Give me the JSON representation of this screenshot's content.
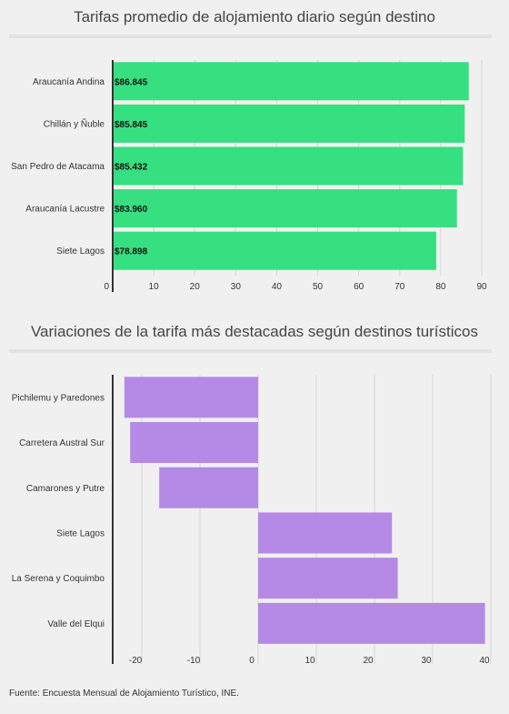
{
  "chart_data": [
    {
      "type": "bar",
      "orientation": "horizontal",
      "title": "Tarifas promedio de alojamiento diario según destino",
      "categories": [
        "Araucanía Andina",
        "Chillán y Ñuble",
        "San Pedro de Atacama",
        "Araucanía Lacustre",
        "Siete Lagos"
      ],
      "values": [
        86.845,
        85.845,
        85.432,
        83.96,
        78.898
      ],
      "data_labels": [
        "$86.845",
        "$85.845",
        "$85.432",
        "$83.960",
        "$78.898"
      ],
      "xlim": [
        0,
        90
      ],
      "ticks": [
        0,
        10,
        20,
        30,
        40,
        50,
        60,
        70,
        80,
        90
      ],
      "tick_labels": [
        "0",
        "10",
        "20",
        "30",
        "40",
        "50",
        "60",
        "70",
        "80",
        "90"
      ],
      "grid": true,
      "color": "#36df80"
    },
    {
      "type": "bar",
      "orientation": "horizontal",
      "title": "Variaciones de la tarifa más destacadas según destinos turísticos",
      "categories": [
        "Pichilemu y Paredones",
        "Carretera Austral Sur",
        "Camarones y Putre",
        "Siete Lagos",
        "La Serena y Coquimbo",
        "Valle del Elqui"
      ],
      "values": [
        -23,
        -22,
        -17,
        23,
        24,
        39
      ],
      "xlim": [
        -25,
        40
      ],
      "ticks": [
        -20,
        -10,
        0,
        10,
        20,
        30,
        40
      ],
      "tick_labels": [
        "-20",
        "-10",
        "0",
        "10",
        "20",
        "30",
        "40"
      ],
      "grid": true,
      "color": "#b48ae6"
    }
  ],
  "footer": "Fuente:  Encuesta Mensual de Alojamiento Turístico, INE."
}
